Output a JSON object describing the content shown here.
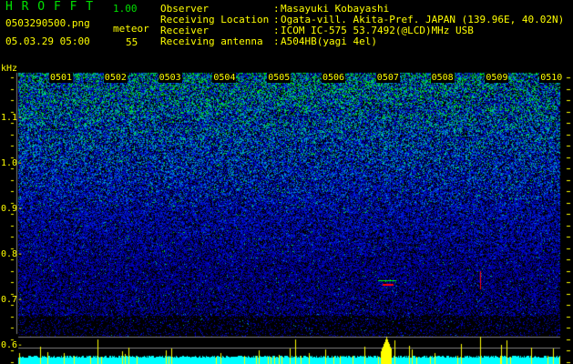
{
  "header": {
    "app_title": "H R O F F T",
    "version": "1.00",
    "filename": "0503290500.png",
    "datetime": "05.03.29 05:00",
    "meteor_label": "meteor",
    "meteor_count": "55"
  },
  "info": [
    {
      "label": "Observer",
      "value": "Masayuki Kobayashi"
    },
    {
      "label": "Receiving Location",
      "value": "Ogata-vill. Akita-Pref. JAPAN (139.96E, 40.02N)"
    },
    {
      "label": "Receiver",
      "value": "ICOM IC-575 53.7492(@LCD)MHz USB"
    },
    {
      "label": "Receiving antenna",
      "value": "A504HB(yagi 4el)"
    }
  ],
  "colon": ":",
  "chart_data": {
    "type": "heatmap",
    "ylabel": "kHz",
    "y_ticks": [
      "1.1",
      "1.0",
      "0.9",
      "0.8",
      "0.7",
      "0.6"
    ],
    "x_ticks": [
      "0501",
      "0502",
      "0503",
      "0504",
      "0505",
      "0506",
      "0507",
      "0508",
      "0509",
      "0510"
    ],
    "colors": {
      "background": "#000000",
      "low": "#0000c0",
      "mid": "#00c0c0",
      "high": "#00ff00",
      "echo": "#ff0000",
      "histogram_base": "#00ffff",
      "meteor_bars": "#ffff00",
      "axis": "#ffff00",
      "title": "#00e000"
    }
  }
}
